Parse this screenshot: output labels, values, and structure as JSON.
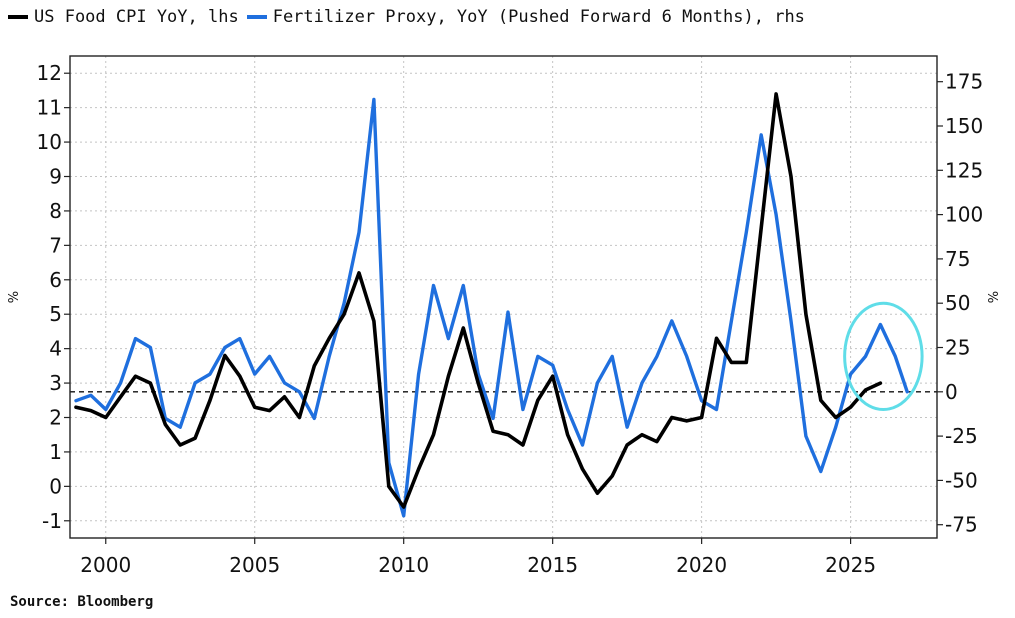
{
  "chart_data": {
    "type": "line",
    "legend_placement": "top-left",
    "grid": true,
    "xlim": [
      1998.8,
      2027.9
    ],
    "x_ticks": [
      2000,
      2005,
      2010,
      2015,
      2020,
      2025
    ],
    "y_left": {
      "label": "%",
      "ylim": [
        -1.5,
        12.5
      ],
      "ticks": [
        -1,
        0,
        1,
        2,
        3,
        4,
        5,
        6,
        7,
        8,
        9,
        10,
        11,
        12
      ]
    },
    "y_right": {
      "label": "%",
      "ylim": [
        -82.5,
        189.5
      ],
      "ticks": [
        -75,
        -50,
        -25,
        0,
        25,
        50,
        75,
        100,
        125,
        150,
        175
      ]
    },
    "reference_line": {
      "axis": "right",
      "value": 0,
      "style": "dashed"
    },
    "highlight": {
      "shape": "ellipse",
      "color": "#5fdde8",
      "x_range": [
        2024.8,
        2027.4
      ],
      "y_range_rhs": [
        -10,
        50
      ]
    },
    "series": [
      {
        "name": "US Food CPI YoY, lhs",
        "axis": "left",
        "color": "#000000",
        "x": [
          1999.0,
          1999.5,
          2000.0,
          2000.5,
          2001.0,
          2001.5,
          2002.0,
          2002.5,
          2003.0,
          2003.5,
          2004.0,
          2004.5,
          2005.0,
          2005.5,
          2006.0,
          2006.5,
          2007.0,
          2007.5,
          2008.0,
          2008.5,
          2009.0,
          2009.5,
          2010.0,
          2010.5,
          2011.0,
          2011.5,
          2012.0,
          2012.5,
          2013.0,
          2013.5,
          2014.0,
          2014.5,
          2015.0,
          2015.5,
          2016.0,
          2016.5,
          2017.0,
          2017.5,
          2018.0,
          2018.5,
          2019.0,
          2019.5,
          2020.0,
          2020.5,
          2021.0,
          2021.5,
          2022.0,
          2022.5,
          2023.0,
          2023.5,
          2024.0,
          2024.5,
          2025.0,
          2025.5,
          2026.0
        ],
        "values": [
          2.3,
          2.2,
          2.0,
          2.6,
          3.2,
          3.0,
          1.8,
          1.2,
          1.4,
          2.5,
          3.8,
          3.2,
          2.3,
          2.2,
          2.6,
          2.0,
          3.5,
          4.3,
          5.0,
          6.2,
          4.8,
          0.0,
          -0.6,
          0.5,
          1.5,
          3.2,
          4.6,
          3.0,
          1.6,
          1.5,
          1.2,
          2.5,
          3.2,
          1.5,
          0.5,
          -0.2,
          0.3,
          1.2,
          1.5,
          1.3,
          2.0,
          1.9,
          2.0,
          4.3,
          3.6,
          3.6,
          7.5,
          11.4,
          9.0,
          5.0,
          2.5,
          2.0,
          2.3,
          2.8,
          3.0
        ]
      },
      {
        "name": "Fertilizer Proxy, YoY (Pushed Forward 6 Months), rhs",
        "axis": "right",
        "color": "#1f6fde",
        "x": [
          1999.0,
          1999.5,
          2000.0,
          2000.5,
          2001.0,
          2001.5,
          2002.0,
          2002.5,
          2003.0,
          2003.5,
          2004.0,
          2004.5,
          2005.0,
          2005.5,
          2006.0,
          2006.5,
          2007.0,
          2007.5,
          2008.0,
          2008.5,
          2009.0,
          2009.5,
          2010.0,
          2010.5,
          2011.0,
          2011.5,
          2012.0,
          2012.5,
          2013.0,
          2013.5,
          2014.0,
          2014.5,
          2015.0,
          2015.5,
          2016.0,
          2016.5,
          2017.0,
          2017.5,
          2018.0,
          2018.5,
          2019.0,
          2019.5,
          2020.0,
          2020.5,
          2021.0,
          2021.5,
          2022.0,
          2022.5,
          2023.0,
          2023.5,
          2024.0,
          2024.5,
          2025.0,
          2025.5,
          2026.0,
          2026.5,
          2026.9
        ],
        "values": [
          -5,
          -2,
          -10,
          5,
          30,
          25,
          -15,
          -20,
          5,
          10,
          25,
          30,
          10,
          20,
          5,
          0,
          -15,
          20,
          50,
          90,
          165,
          -40,
          -70,
          10,
          60,
          30,
          60,
          10,
          -15,
          45,
          -10,
          20,
          15,
          -10,
          -30,
          5,
          20,
          -20,
          5,
          20,
          40,
          20,
          -5,
          -10,
          40,
          90,
          145,
          100,
          40,
          -25,
          -45,
          -20,
          10,
          20,
          38,
          20,
          0
        ]
      }
    ]
  },
  "legend": {
    "items": [
      {
        "label": "US Food CPI YoY, lhs",
        "color": "#000000"
      },
      {
        "label": "Fertilizer Proxy, YoY (Pushed Forward 6 Months), rhs",
        "color": "#1f6fde"
      }
    ]
  },
  "footer": {
    "source": "Source: Bloomberg"
  }
}
